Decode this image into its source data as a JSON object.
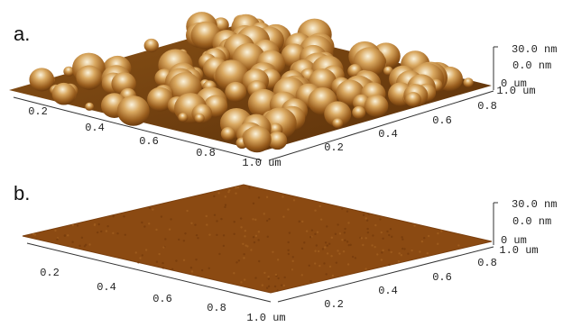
{
  "panels": [
    {
      "label": "a.",
      "x_axis": [
        "0.2",
        "0.4",
        "0.6",
        "0.8",
        "1.0 um"
      ],
      "y_axis": [
        "0.2",
        "0.4",
        "0.6",
        "0.8",
        "1.0 um"
      ],
      "z_scale": [
        "30.0 nm",
        "0.0 nm",
        "0 um"
      ]
    },
    {
      "label": "b.",
      "x_axis": [
        "0.2",
        "0.4",
        "0.6",
        "0.8",
        "1.0 um"
      ],
      "y_axis": [
        "0.2",
        "0.4",
        "0.6",
        "0.8",
        "1.0 um"
      ],
      "z_scale": [
        "30.0 nm",
        "0.0 nm",
        "0 um"
      ]
    }
  ]
}
